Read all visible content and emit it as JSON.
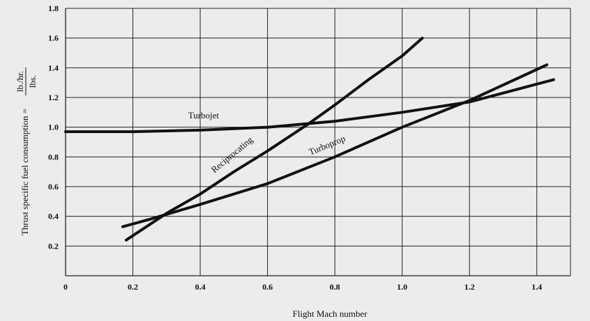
{
  "chart_data": {
    "type": "line",
    "xlabel": "Flight Mach number",
    "ylabel": {
      "prefix": "Thrust specific fuel consumption =",
      "numerator": "lb./hr.",
      "denominator": "lbs."
    },
    "xlim": [
      0,
      1.5
    ],
    "ylim": [
      0,
      1.8
    ],
    "x_ticks": [
      "0",
      "0.2",
      "0.4",
      "0.6",
      "0.8",
      "1.0",
      "1.2",
      "1.4"
    ],
    "y_ticks": [
      "0.2",
      "0.4",
      "0.6",
      "0.8",
      "1.0",
      "1.2",
      "1.4",
      "1.6",
      "1.8"
    ],
    "grid": true,
    "series": [
      {
        "name": "Turbojet",
        "points": [
          [
            0,
            0.97
          ],
          [
            0.2,
            0.97
          ],
          [
            0.4,
            0.98
          ],
          [
            0.6,
            1.0
          ],
          [
            0.8,
            1.04
          ],
          [
            1.0,
            1.1
          ],
          [
            1.2,
            1.17
          ],
          [
            1.45,
            1.32
          ]
        ]
      },
      {
        "name": "Reciprocating",
        "points": [
          [
            0.18,
            0.24
          ],
          [
            0.3,
            0.42
          ],
          [
            0.4,
            0.55
          ],
          [
            0.5,
            0.7
          ],
          [
            0.6,
            0.84
          ],
          [
            0.72,
            1.02
          ],
          [
            0.8,
            1.15
          ],
          [
            0.9,
            1.32
          ],
          [
            1.0,
            1.48
          ],
          [
            1.06,
            1.6
          ]
        ]
      },
      {
        "name": "Turboprop",
        "points": [
          [
            0.17,
            0.33
          ],
          [
            0.25,
            0.38
          ],
          [
            0.4,
            0.48
          ],
          [
            0.6,
            0.62
          ],
          [
            0.8,
            0.8
          ],
          [
            1.0,
            1.0
          ],
          [
            1.2,
            1.18
          ],
          [
            1.43,
            1.42
          ]
        ]
      }
    ]
  }
}
